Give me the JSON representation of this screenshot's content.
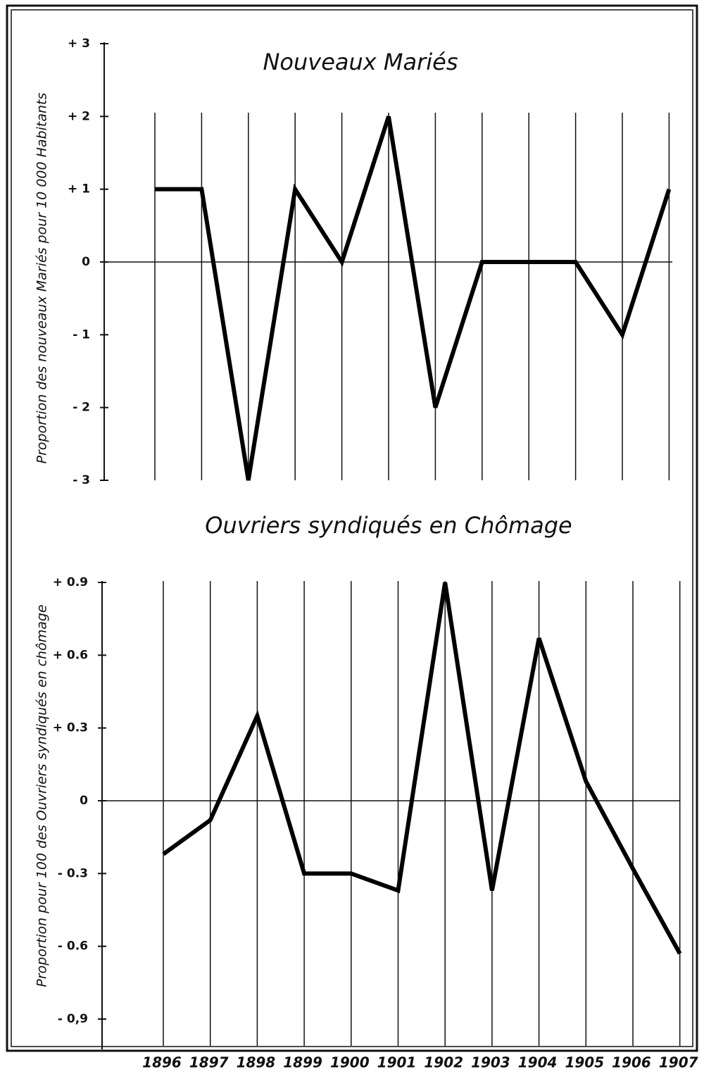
{
  "chart_data": [
    {
      "type": "line",
      "title": "Nouveaux Mariés",
      "y_label": "Proportion des nouveaux Mariés pour 10 000 Habitants",
      "values": [
        1,
        1,
        -3,
        1,
        0,
        2,
        -2,
        0,
        0,
        0,
        -1,
        1
      ],
      "color": "#000000",
      "ylim": [
        -3,
        3
      ],
      "yticks": [
        {
          "value": 3,
          "label": "+ 3"
        },
        {
          "value": 2,
          "label": "+ 2"
        },
        {
          "value": 1,
          "label": "+ 1"
        },
        0,
        {
          "value": -1,
          "label": "- 1"
        },
        {
          "value": -2,
          "label": "- 2"
        },
        {
          "value": -3,
          "label": "- 3"
        }
      ]
    },
    {
      "type": "line",
      "title": "Ouvriers syndiqués en Chômage",
      "y_label": "Proportion pour 100 des Ouvriers syndiqués en chômage",
      "categories": [
        "1896",
        "1897",
        "1898",
        "1899",
        "1900",
        "1901",
        "1902",
        "1903",
        "1904",
        "1905",
        "1906",
        "1907"
      ],
      "values": [
        -0.22,
        -0.08,
        0.35,
        -0.3,
        -0.3,
        -0.37,
        0.9,
        -0.37,
        0.67,
        0.08,
        -0.28,
        -0.63
      ],
      "color": "#000000",
      "ylim": [
        -0.9,
        0.9
      ],
      "yticks": [
        {
          "value": 0.9,
          "label": "+ 0.9"
        },
        {
          "value": 0.6,
          "label": "+ 0.6"
        },
        {
          "value": 0.3,
          "label": "+ 0.3"
        },
        0,
        {
          "value": -0.3,
          "label": "- 0.3"
        },
        {
          "value": -0.6,
          "label": "- 0.6"
        },
        {
          "value": -0.9,
          "label": "- 0,9"
        }
      ]
    }
  ]
}
